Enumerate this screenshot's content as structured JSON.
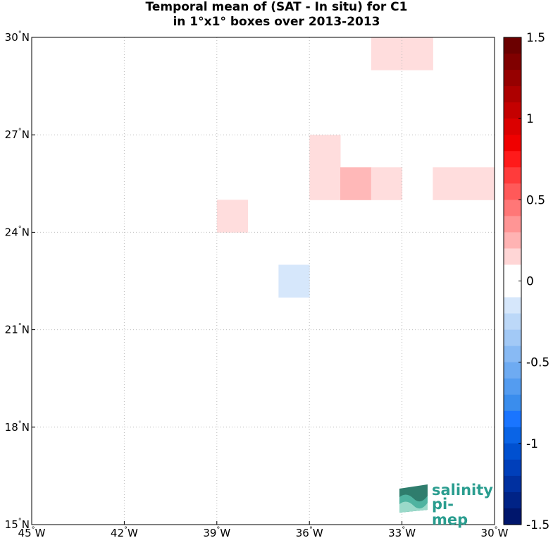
{
  "title_line1": "Temporal mean of (SAT - In situ) for C1",
  "title_line2": "in 1°x1° boxes over 2013-2013",
  "logo": {
    "line1": "salinity",
    "line2": "pi-mep"
  },
  "chart_data": {
    "type": "heatmap",
    "title": "Temporal mean of (SAT - In situ) for C1 in 1°x1° boxes over 2013-2013",
    "xlim": [
      -45,
      -30
    ],
    "ylim": [
      15,
      30
    ],
    "x_ticks": [
      {
        "value": -45,
        "num": "45",
        "suf": "W"
      },
      {
        "value": -42,
        "num": "42",
        "suf": "W"
      },
      {
        "value": -39,
        "num": "39",
        "suf": "W"
      },
      {
        "value": -36,
        "num": "36",
        "suf": "W"
      },
      {
        "value": -33,
        "num": "33",
        "suf": "W"
      },
      {
        "value": -30,
        "num": "30",
        "suf": "W"
      }
    ],
    "y_ticks": [
      {
        "value": 15,
        "num": "15",
        "suf": "N"
      },
      {
        "value": 18,
        "num": "18",
        "suf": "N"
      },
      {
        "value": 21,
        "num": "21",
        "suf": "N"
      },
      {
        "value": 24,
        "num": "24",
        "suf": "N"
      },
      {
        "value": 27,
        "num": "27",
        "suf": "N"
      },
      {
        "value": 30,
        "num": "30",
        "suf": "N"
      }
    ],
    "grid": true,
    "cells": [
      {
        "lon": -34,
        "lat": 29,
        "value": 0.15
      },
      {
        "lon": -33,
        "lat": 29,
        "value": 0.15
      },
      {
        "lon": -36,
        "lat": 26,
        "value": 0.15
      },
      {
        "lon": -36,
        "lat": 25,
        "value": 0.15
      },
      {
        "lon": -35,
        "lat": 25,
        "value": 0.3
      },
      {
        "lon": -34,
        "lat": 25,
        "value": 0.15
      },
      {
        "lon": -32,
        "lat": 25,
        "value": 0.15
      },
      {
        "lon": -31,
        "lat": 25,
        "value": 0.15
      },
      {
        "lon": -39,
        "lat": 24,
        "value": 0.15
      },
      {
        "lon": -37,
        "lat": 22,
        "value": -0.15
      }
    ],
    "colorbar": {
      "min": -1.5,
      "max": 1.5,
      "tick_values": [
        1.5,
        1,
        0.5,
        0,
        -0.5,
        -1,
        -1.5
      ],
      "tick_labels": [
        "1.5",
        "1",
        "0.5",
        "0",
        "-0.5",
        "-1",
        "-1.5"
      ],
      "colors": [
        "#6b0000",
        "#800000",
        "#960000",
        "#ad0000",
        "#c40000",
        "#db0000",
        "#f00000",
        "#ff1a1a",
        "#ff3b3b",
        "#ff5959",
        "#ff7777",
        "#ff9595",
        "#ffb3b3",
        "#ffd6d6",
        "#ffffff",
        "#ffffff",
        "#d6e7fb",
        "#bcd8f8",
        "#a2c9f6",
        "#88baf4",
        "#6eabf2",
        "#549cf0",
        "#3a8ded",
        "#1a75ff",
        "#0a64e6",
        "#0050d0",
        "#003fba",
        "#0030a0",
        "#002386",
        "#00166c"
      ],
      "cell_colors": {
        "0.15": "#ffdddd",
        "0.3": "#ffb8b8",
        "-0.15": "#d6e7fb"
      }
    }
  }
}
